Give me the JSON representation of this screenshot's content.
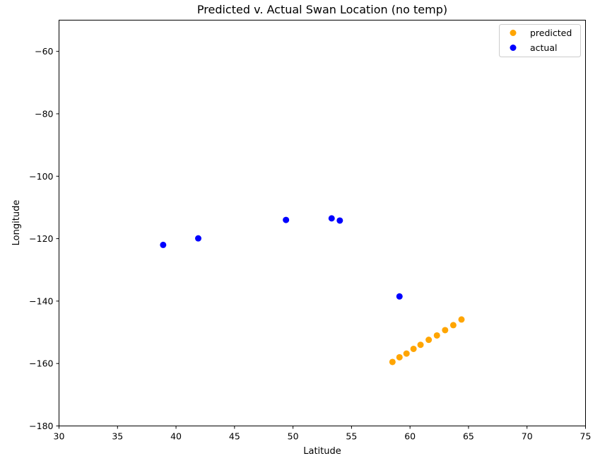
{
  "chart_data": {
    "type": "scatter",
    "title": "Predicted v. Actual Swan Location (no temp)",
    "xlabel": "Latitude",
    "ylabel": "Longitude",
    "xlim": [
      30,
      75
    ],
    "ylim": [
      -180,
      -50
    ],
    "xticks": [
      "30",
      "35",
      "40",
      "45",
      "50",
      "55",
      "60",
      "65",
      "70",
      "75"
    ],
    "yticks": [
      "−60",
      "−80",
      "−100",
      "−120",
      "−140",
      "−160",
      "−180"
    ],
    "grid": false,
    "legend_position": "top-right",
    "series": [
      {
        "name": "predicted",
        "color": "#ffa500",
        "points": [
          {
            "x": 58.5,
            "y": -159.5
          },
          {
            "x": 59.1,
            "y": -158.0
          },
          {
            "x": 59.7,
            "y": -156.8
          },
          {
            "x": 60.3,
            "y": -155.3
          },
          {
            "x": 60.9,
            "y": -154.0
          },
          {
            "x": 61.6,
            "y": -152.4
          },
          {
            "x": 62.3,
            "y": -151.0
          },
          {
            "x": 63.0,
            "y": -149.3
          },
          {
            "x": 63.7,
            "y": -147.7
          },
          {
            "x": 64.4,
            "y": -145.9
          }
        ]
      },
      {
        "name": "actual",
        "color": "#0000ff",
        "points": [
          {
            "x": 38.9,
            "y": -122.0
          },
          {
            "x": 41.9,
            "y": -119.9
          },
          {
            "x": 49.4,
            "y": -114.0
          },
          {
            "x": 53.3,
            "y": -113.5
          },
          {
            "x": 54.0,
            "y": -114.2
          },
          {
            "x": 59.1,
            "y": -138.5
          }
        ]
      }
    ]
  }
}
